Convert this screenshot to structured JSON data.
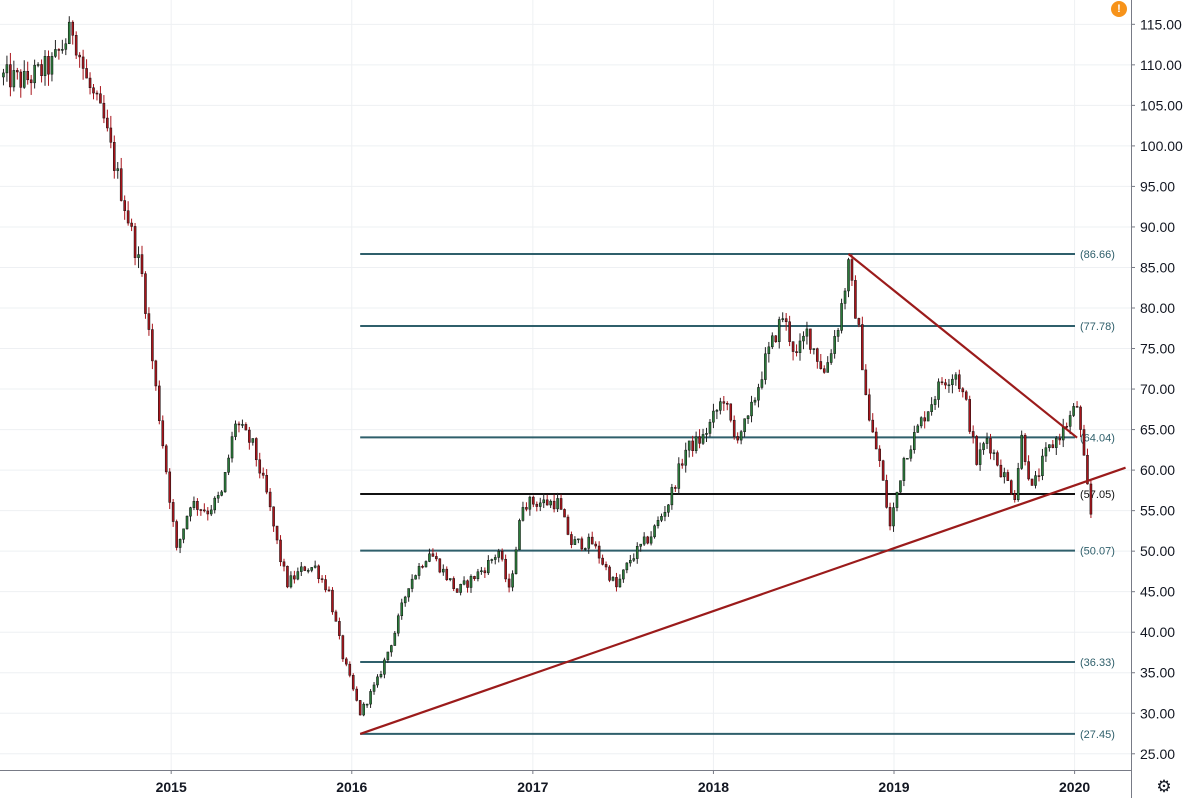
{
  "ui": {
    "settings_icon": "gear-icon",
    "alert_icon": "exclamation-icon",
    "alert_glyph": "!",
    "alert_color": "#f7931a"
  },
  "chart_data": {
    "type": "candlestick",
    "title": "",
    "xlabel": "",
    "ylabel": "",
    "ylim": [
      23,
      118
    ],
    "xlim": [
      "2014-01-20",
      "2020-04-24"
    ],
    "y_ticks": [
      "25.00",
      "30.00",
      "35.00",
      "40.00",
      "45.00",
      "50.00",
      "55.00",
      "60.00",
      "65.00",
      "70.00",
      "75.00",
      "80.00",
      "85.00",
      "90.00",
      "95.00",
      "100.00",
      "105.00",
      "110.00",
      "115.00"
    ],
    "x_ticks": [
      {
        "label": "2015",
        "date": "2015-01-01"
      },
      {
        "label": "2016",
        "date": "2016-01-01"
      },
      {
        "label": "2017",
        "date": "2017-01-01"
      },
      {
        "label": "2018",
        "date": "2018-01-01"
      },
      {
        "label": "2019",
        "date": "2019-01-01"
      },
      {
        "label": "2020",
        "date": "2020-01-01"
      }
    ],
    "grid": true,
    "colors": {
      "up": "#2a7a3a",
      "down": "#a8141b",
      "wick": "#222222",
      "fib": "#2f5f6b",
      "trend": "#9b1b1b",
      "level": "#111111"
    },
    "candle_interval_days": 7,
    "close_anchors": [
      [
        "2014-01-27",
        108.5
      ],
      [
        "2014-03-10",
        108.0
      ],
      [
        "2014-05-05",
        110.0
      ],
      [
        "2014-06-16",
        114.5
      ],
      [
        "2014-07-14",
        108.0
      ],
      [
        "2014-08-18",
        103.0
      ],
      [
        "2014-10-06",
        91.0
      ],
      [
        "2014-11-03",
        84.0
      ],
      [
        "2014-12-01",
        70.0
      ],
      [
        "2014-12-22",
        60.0
      ],
      [
        "2015-01-12",
        50.0
      ],
      [
        "2015-02-09",
        56.0
      ],
      [
        "2015-03-16",
        55.0
      ],
      [
        "2015-04-13",
        57.0
      ],
      [
        "2015-05-11",
        66.0
      ],
      [
        "2015-06-15",
        63.0
      ],
      [
        "2015-07-13",
        57.0
      ],
      [
        "2015-08-10",
        49.0
      ],
      [
        "2015-08-24",
        46.0
      ],
      [
        "2015-09-28",
        48.0
      ],
      [
        "2015-10-19",
        48.0
      ],
      [
        "2015-11-16",
        45.0
      ],
      [
        "2015-12-14",
        37.0
      ],
      [
        "2016-01-18",
        30.0
      ],
      [
        "2016-02-22",
        34.0
      ],
      [
        "2016-03-28",
        40.0
      ],
      [
        "2016-04-25",
        46.0
      ],
      [
        "2016-06-06",
        50.0
      ],
      [
        "2016-08-01",
        45.0
      ],
      [
        "2016-09-26",
        48.0
      ],
      [
        "2016-10-24",
        50.0
      ],
      [
        "2016-11-14",
        45.0
      ],
      [
        "2016-12-12",
        56.0
      ],
      [
        "2017-01-16",
        56.0
      ],
      [
        "2017-02-20",
        56.0
      ],
      [
        "2017-03-20",
        51.0
      ],
      [
        "2017-05-01",
        51.0
      ],
      [
        "2017-06-19",
        45.5
      ],
      [
        "2017-07-17",
        49.0
      ],
      [
        "2017-08-28",
        52.0
      ],
      [
        "2017-10-02",
        56.0
      ],
      [
        "2017-11-06",
        62.5
      ],
      [
        "2017-12-11",
        64.0
      ],
      [
        "2018-01-22",
        69.0
      ],
      [
        "2018-02-12",
        64.0
      ],
      [
        "2018-03-12",
        66.0
      ],
      [
        "2018-04-16",
        73.5
      ],
      [
        "2018-05-21",
        79.0
      ],
      [
        "2018-06-18",
        74.0
      ],
      [
        "2018-07-09",
        77.0
      ],
      [
        "2018-08-13",
        72.0
      ],
      [
        "2018-09-10",
        78.0
      ],
      [
        "2018-10-01",
        85.0
      ],
      [
        "2018-10-22",
        77.0
      ],
      [
        "2018-11-12",
        66.0
      ],
      [
        "2018-12-03",
        61.0
      ],
      [
        "2018-12-24",
        53.0
      ],
      [
        "2019-01-21",
        61.5
      ],
      [
        "2019-02-25",
        66.0
      ],
      [
        "2019-04-08",
        71.0
      ],
      [
        "2019-05-06",
        72.0
      ],
      [
        "2019-05-27",
        68.0
      ],
      [
        "2019-06-17",
        61.0
      ],
      [
        "2019-07-08",
        64.0
      ],
      [
        "2019-08-05",
        60.0
      ],
      [
        "2019-09-02",
        57.0
      ],
      [
        "2019-09-16",
        64.0
      ],
      [
        "2019-10-07",
        57.5
      ],
      [
        "2019-11-04",
        62.0
      ],
      [
        "2019-12-09",
        65.0
      ],
      [
        "2020-01-06",
        68.0
      ],
      [
        "2020-01-20",
        61.0
      ],
      [
        "2020-02-03",
        54.5
      ]
    ],
    "fib_levels": [
      {
        "label": "(86.66)",
        "value": 86.66,
        "start": "2016-01-18"
      },
      {
        "label": "(77.78)",
        "value": 77.78,
        "start": "2016-01-18"
      },
      {
        "label": "(64.04)",
        "value": 64.04,
        "start": "2016-01-18"
      },
      {
        "label": "(50.07)",
        "value": 50.07,
        "start": "2016-01-18"
      },
      {
        "label": "(36.33)",
        "value": 36.33,
        "start": "2016-01-18"
      },
      {
        "label": "(27.45)",
        "value": 27.45,
        "start": "2016-01-18"
      }
    ],
    "horizontal_line": {
      "label": "(57.05)",
      "value": 57.05,
      "start": "2016-01-18"
    },
    "trendlines": [
      {
        "from": [
          "2016-01-18",
          27.45
        ],
        "to": [
          "2020-04-13",
          60.3
        ]
      },
      {
        "from": [
          "2018-10-01",
          86.66
        ],
        "to": [
          "2020-01-06",
          64.0
        ]
      }
    ]
  }
}
